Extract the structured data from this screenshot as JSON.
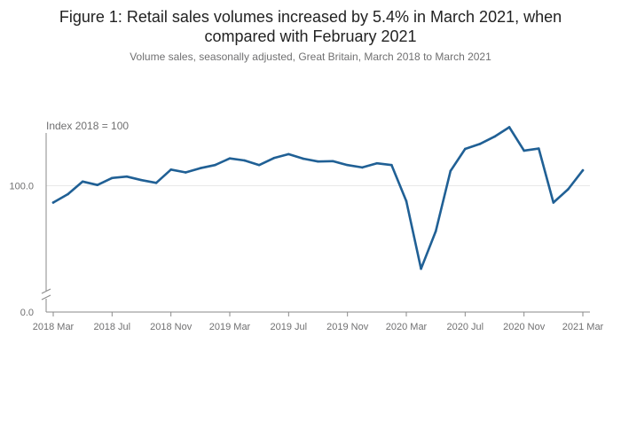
{
  "chart_data": {
    "type": "line",
    "title": "Figure 1: Retail sales volumes increased by 5.4% in March 2021, when compared with February 2021",
    "title_line1": "Figure 1: Retail sales volumes increased by 5.4% in March 2021, when",
    "title_line2": "compared with February 2021",
    "subtitle": "Volume sales, seasonally adjusted, Great Britain, March 2018 to March 2021",
    "ylabel": "Index 2018 = 100",
    "xlabel": "",
    "y_ticks": [
      {
        "value": 0,
        "label": "0.0"
      },
      {
        "value": 100,
        "label": "100.0"
      }
    ],
    "x_ticks": [
      {
        "index": 0,
        "label": "2018 Mar"
      },
      {
        "index": 4,
        "label": "2018 Jul"
      },
      {
        "index": 8,
        "label": "2018 Nov"
      },
      {
        "index": 12,
        "label": "2019 Mar"
      },
      {
        "index": 16,
        "label": "2019 Jul"
      },
      {
        "index": 20,
        "label": "2019 Nov"
      },
      {
        "index": 24,
        "label": "2020 Mar"
      },
      {
        "index": 28,
        "label": "2020 Jul"
      },
      {
        "index": 32,
        "label": "2020 Nov"
      },
      {
        "index": 36,
        "label": "2021 Mar"
      }
    ],
    "axis_break": true,
    "line_color": "#206095",
    "series": [
      {
        "name": "Volume sales index",
        "values": [
          95.2,
          97.6,
          101.2,
          100.2,
          102.2,
          102.6,
          101.6,
          100.8,
          104.6,
          103.8,
          105.0,
          105.9,
          107.8,
          107.2,
          105.9,
          107.9,
          109.0,
          107.7,
          106.9,
          107.0,
          105.9,
          105.2,
          106.4,
          105.9,
          95.6,
          76.3,
          87.0,
          104.2,
          110.5,
          111.9,
          114.0,
          116.7,
          110.0,
          110.6,
          95.2,
          99.0,
          104.4
        ]
      }
    ]
  }
}
